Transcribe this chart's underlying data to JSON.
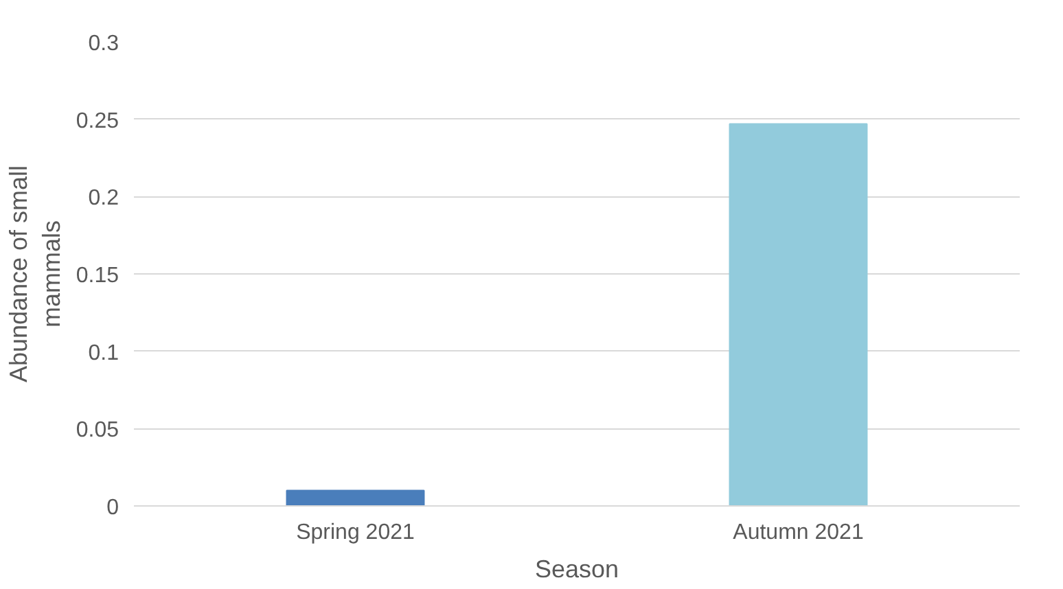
{
  "chart_data": {
    "type": "bar",
    "xlabel": "Season",
    "ylabel": "Abundance of small mammals",
    "categories": [
      "Spring 2021",
      "Autumn 2021"
    ],
    "values": [
      0.01,
      0.247
    ],
    "colors": [
      "#4a7ebb",
      "#92cbdc"
    ],
    "ylim": [
      0,
      0.3
    ],
    "yticks": [
      0,
      0.05,
      0.1,
      0.15,
      0.2,
      0.25,
      0.3
    ],
    "grid": "y"
  }
}
